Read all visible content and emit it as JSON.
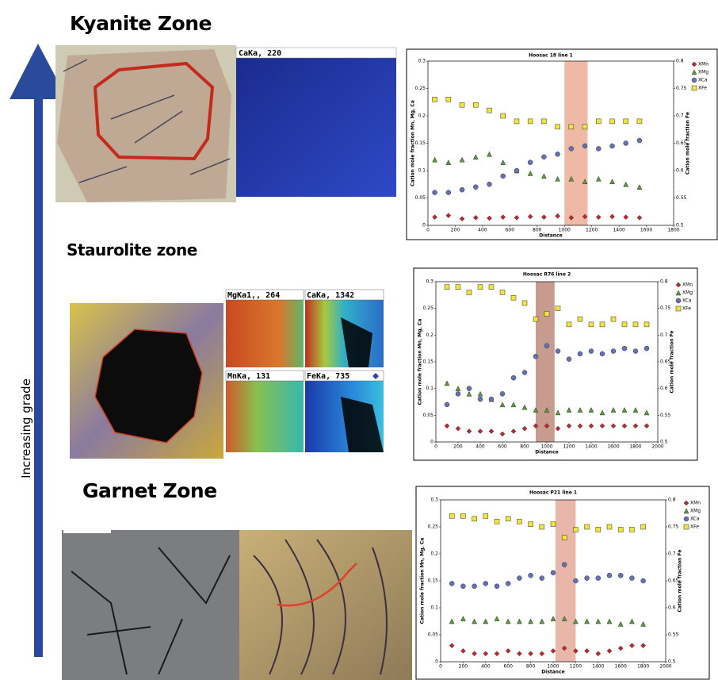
{
  "zones": [
    {
      "label": "Kyanite Zone"
    },
    {
      "label": "Staurolite zone"
    },
    {
      "label": "Garnet Zone"
    }
  ],
  "grade_label": "Increasing grade",
  "map_labels": [
    "CaKa, 220",
    "MgKa1,, 264",
    "CaKa, 1342",
    "MnKa, 131",
    "FeKa, 735"
  ],
  "chart_data": [
    {
      "type": "scatter",
      "title": "Hoosac 18 line 1",
      "x_label": "Distance",
      "y_label": "Cation mole fraction Mn, Mg, Ca",
      "y2_label": "Cation mole fraction Fe",
      "xlim": [
        0,
        1800
      ],
      "xticks": [
        0,
        200,
        400,
        600,
        800,
        1000,
        1200,
        1400,
        1600,
        1800
      ],
      "ylim": [
        0,
        0.3
      ],
      "yticks": [
        0,
        0.05,
        0.1,
        0.15,
        0.2,
        0.25,
        0.3
      ],
      "y2lim": [
        0.5,
        0.8
      ],
      "y2ticks": [
        0.5,
        0.55,
        0.6,
        0.65,
        0.7,
        0.75,
        0.8
      ],
      "highlight": [
        1000,
        1170
      ],
      "highlight_color": "#eba98f",
      "legend": "right",
      "x": [
        50,
        150,
        250,
        350,
        450,
        550,
        650,
        750,
        850,
        950,
        1050,
        1150,
        1250,
        1350,
        1450,
        1550
      ],
      "series": [
        {
          "name": "XMn",
          "color": "#c0282d",
          "marker": "diamond",
          "values": [
            0.015,
            0.018,
            0.012,
            0.014,
            0.013,
            0.015,
            0.014,
            0.016,
            0.015,
            0.017,
            0.014,
            0.016,
            0.015,
            0.016,
            0.015,
            0.014
          ]
        },
        {
          "name": "XMg",
          "color": "#5a9a3a",
          "marker": "triangle",
          "values": [
            0.12,
            0.115,
            0.12,
            0.125,
            0.13,
            0.115,
            0.1,
            0.095,
            0.09,
            0.085,
            0.085,
            0.08,
            0.085,
            0.08,
            0.075,
            0.07
          ]
        },
        {
          "name": "XCa",
          "color": "#6670b8",
          "marker": "circle",
          "values": [
            0.06,
            0.06,
            0.065,
            0.07,
            0.075,
            0.09,
            0.1,
            0.115,
            0.125,
            0.13,
            0.14,
            0.145,
            0.14,
            0.145,
            0.15,
            0.155
          ]
        },
        {
          "name": "XFe",
          "color": "#f2e43a",
          "marker": "square",
          "axis": "y2",
          "values": [
            0.73,
            0.73,
            0.72,
            0.72,
            0.71,
            0.7,
            0.69,
            0.69,
            0.69,
            0.68,
            0.68,
            0.68,
            0.69,
            0.69,
            0.69,
            0.69
          ]
        }
      ]
    },
    {
      "type": "scatter",
      "title": "Hoosac R76 line 2",
      "x_label": "Distance",
      "y_label": "Cation mole fraction Mn, Mg, Ca",
      "y2_label": "Cation mole fraction Fe",
      "xlim": [
        0,
        2000
      ],
      "xticks": [
        0,
        200,
        400,
        600,
        800,
        1000,
        1200,
        1400,
        1600,
        1800,
        2000
      ],
      "ylim": [
        0,
        0.3
      ],
      "yticks": [
        0,
        0.05,
        0.1,
        0.15,
        0.2,
        0.25,
        0.3
      ],
      "y2lim": [
        0.5,
        0.8
      ],
      "y2ticks": [
        0.5,
        0.55,
        0.6,
        0.65,
        0.7,
        0.75,
        0.8
      ],
      "highlight": [
        900,
        1070
      ],
      "highlight_color": "#b98272",
      "legend": "right",
      "x": [
        100,
        200,
        300,
        400,
        500,
        600,
        700,
        800,
        900,
        1000,
        1100,
        1200,
        1300,
        1400,
        1500,
        1600,
        1700,
        1800,
        1900
      ],
      "series": [
        {
          "name": "XMn",
          "color": "#c0282d",
          "marker": "diamond",
          "values": [
            0.03,
            0.025,
            0.02,
            0.02,
            0.02,
            0.015,
            0.02,
            0.025,
            0.03,
            0.03,
            0.025,
            0.03,
            0.03,
            0.03,
            0.03,
            0.03,
            0.03,
            0.03,
            0.03
          ]
        },
        {
          "name": "XMg",
          "color": "#5a9a3a",
          "marker": "triangle",
          "values": [
            0.11,
            0.1,
            0.09,
            0.09,
            0.08,
            0.07,
            0.07,
            0.065,
            0.06,
            0.06,
            0.055,
            0.06,
            0.06,
            0.06,
            0.055,
            0.06,
            0.06,
            0.06,
            0.055
          ]
        },
        {
          "name": "XCa",
          "color": "#6670b8",
          "marker": "circle",
          "values": [
            0.07,
            0.09,
            0.1,
            0.08,
            0.08,
            0.09,
            0.12,
            0.13,
            0.16,
            0.18,
            0.17,
            0.155,
            0.165,
            0.17,
            0.165,
            0.17,
            0.175,
            0.17,
            0.175
          ]
        },
        {
          "name": "XFe",
          "color": "#f2e43a",
          "marker": "square",
          "axis": "y2",
          "values": [
            0.79,
            0.79,
            0.78,
            0.79,
            0.79,
            0.78,
            0.77,
            0.76,
            0.73,
            0.74,
            0.75,
            0.72,
            0.73,
            0.72,
            0.72,
            0.73,
            0.72,
            0.72,
            0.72
          ]
        }
      ]
    },
    {
      "type": "scatter",
      "title": "Hoosac P21 line 1",
      "x_label": "Distance",
      "y_label": "Cation mole fraction Mn, Mg, Ca",
      "y2_label": "Cation mole fraction Fe",
      "xlim": [
        0,
        2000
      ],
      "xticks": [
        0,
        200,
        400,
        600,
        800,
        1000,
        1200,
        1400,
        1600,
        1800,
        2000
      ],
      "ylim": [
        0,
        0.3
      ],
      "yticks": [
        0,
        0.05,
        0.1,
        0.15,
        0.2,
        0.25,
        0.3
      ],
      "y2lim": [
        0.5,
        0.8
      ],
      "y2ticks": [
        0.5,
        0.55,
        0.6,
        0.65,
        0.7,
        0.75,
        0.8
      ],
      "highlight": [
        1020,
        1200
      ],
      "highlight_color": "#e3a593",
      "legend": "right",
      "x": [
        100,
        200,
        300,
        400,
        500,
        600,
        700,
        800,
        900,
        1000,
        1100,
        1200,
        1300,
        1400,
        1500,
        1600,
        1700,
        1800
      ],
      "series": [
        {
          "name": "XMn",
          "color": "#c0282d",
          "marker": "diamond",
          "values": [
            0.03,
            0.02,
            0.015,
            0.015,
            0.015,
            0.02,
            0.015,
            0.015,
            0.015,
            0.02,
            0.025,
            0.02,
            0.02,
            0.015,
            0.02,
            0.025,
            0.03,
            0.03
          ]
        },
        {
          "name": "XMg",
          "color": "#5a9a3a",
          "marker": "triangle",
          "values": [
            0.075,
            0.08,
            0.075,
            0.075,
            0.08,
            0.075,
            0.075,
            0.075,
            0.075,
            0.08,
            0.08,
            0.075,
            0.075,
            0.075,
            0.075,
            0.07,
            0.075,
            0.07
          ]
        },
        {
          "name": "XCa",
          "color": "#6670b8",
          "marker": "circle",
          "values": [
            0.145,
            0.14,
            0.14,
            0.145,
            0.14,
            0.145,
            0.155,
            0.16,
            0.155,
            0.165,
            0.18,
            0.15,
            0.155,
            0.155,
            0.16,
            0.16,
            0.155,
            0.15
          ]
        },
        {
          "name": "XFe",
          "color": "#f2e43a",
          "marker": "square",
          "axis": "y2",
          "values": [
            0.77,
            0.77,
            0.765,
            0.77,
            0.76,
            0.765,
            0.76,
            0.755,
            0.75,
            0.755,
            0.73,
            0.745,
            0.75,
            0.745,
            0.75,
            0.745,
            0.745,
            0.75
          ]
        }
      ]
    }
  ]
}
